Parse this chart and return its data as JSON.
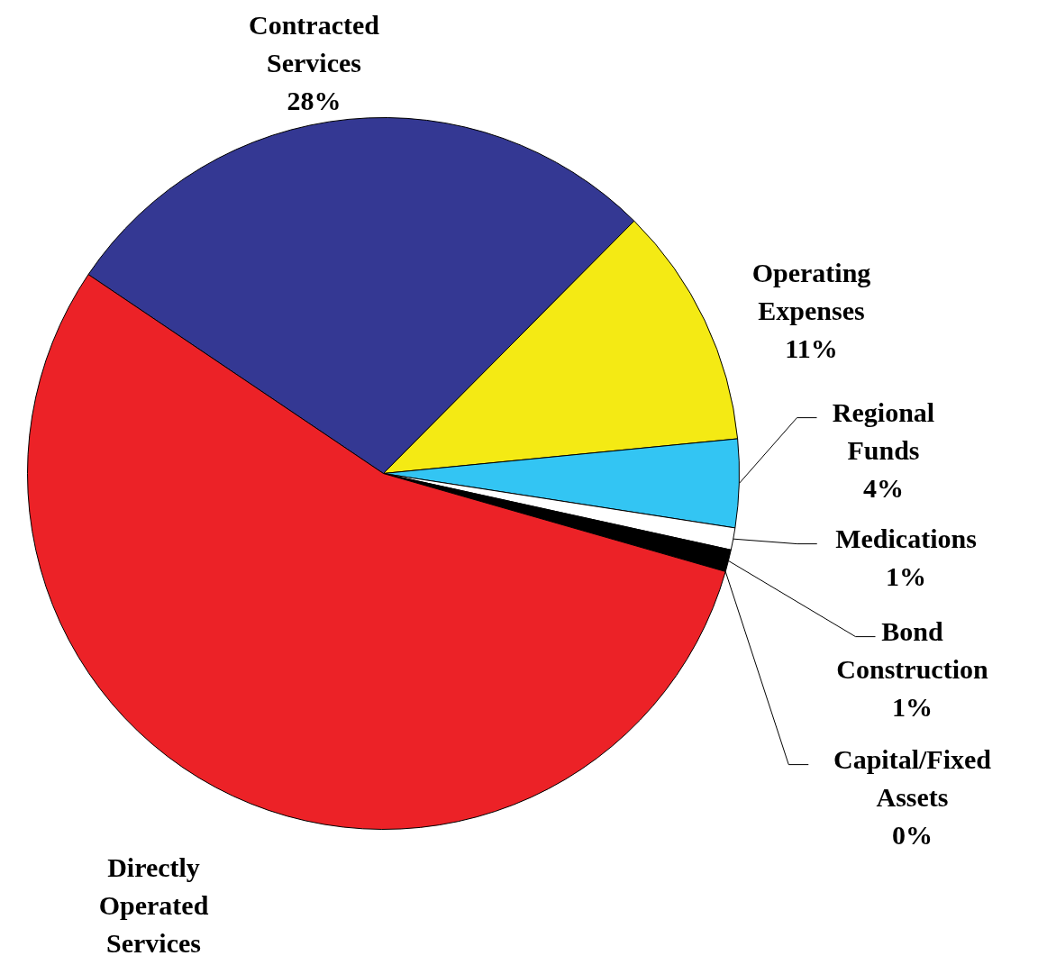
{
  "chart_data": {
    "type": "pie",
    "categories": [
      "Contracted Services",
      "Operating Expenses",
      "Regional Funds",
      "Medications",
      "Bond Construction",
      "Capital/Fixed Assets",
      "Directly Operated Services"
    ],
    "values": [
      28,
      11,
      4,
      1,
      1,
      0,
      55
    ],
    "colors": [
      "#343893",
      "#f4ea14",
      "#33c5f3",
      "#ffffff",
      "#000000",
      "#808080",
      "#ec2227"
    ],
    "value_labels": [
      "28%",
      "11%",
      "4%",
      "1%",
      "1%",
      "0%",
      null
    ]
  }
}
